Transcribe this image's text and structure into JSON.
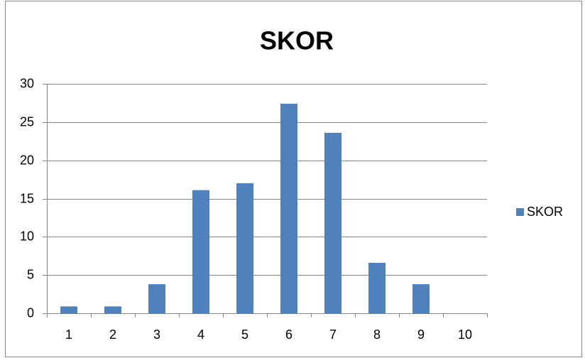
{
  "chart_data": {
    "type": "bar",
    "title": "SKOR",
    "categories": [
      "1",
      "2",
      "3",
      "4",
      "5",
      "6",
      "7",
      "8",
      "9",
      "10"
    ],
    "series": [
      {
        "name": "SKOR",
        "color": "#4f81bd",
        "values": [
          0.9,
          0.9,
          3.8,
          16.1,
          17.0,
          27.4,
          23.6,
          6.6,
          3.8,
          0
        ]
      }
    ],
    "ylim": [
      0,
      30
    ],
    "yticks": [
      0,
      5,
      10,
      15,
      20,
      25,
      30
    ],
    "grid": true,
    "legend": "right"
  }
}
